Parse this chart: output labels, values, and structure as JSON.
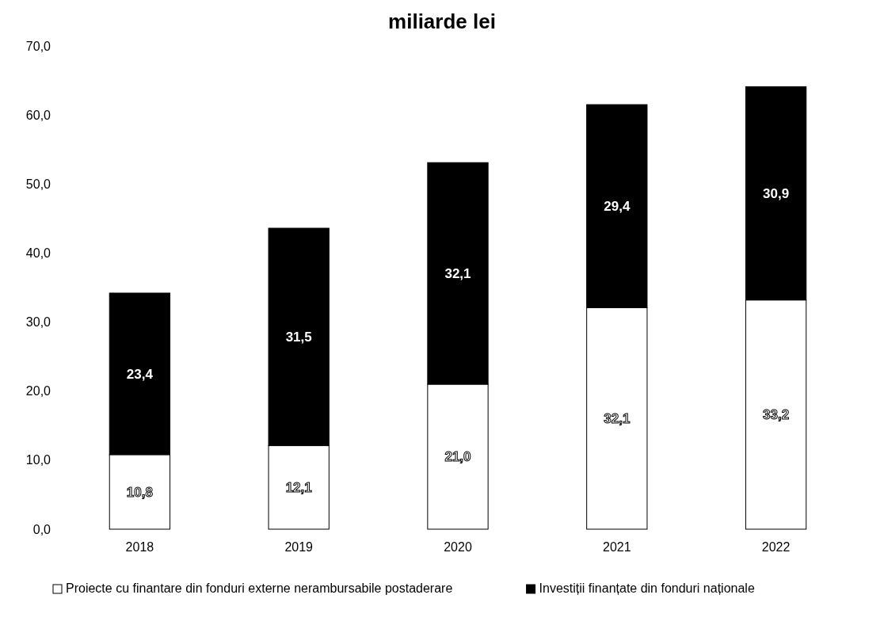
{
  "chart_data": {
    "type": "bar",
    "stacked": true,
    "title": "miliarde lei",
    "categories": [
      "2018",
      "2019",
      "2020",
      "2021",
      "2022"
    ],
    "series": [
      {
        "name": "Proiecte cu finantare din fonduri externe nerambursabile postaderare",
        "color": "#ffffff",
        "values": [
          10.8,
          12.1,
          21.0,
          32.1,
          33.2
        ],
        "value_labels": [
          "10,8",
          "12,1",
          "21,0",
          "32,1",
          "33,2"
        ]
      },
      {
        "name": "Investiții finanțate din fonduri naționale",
        "color": "#000000",
        "values": [
          23.4,
          31.5,
          32.1,
          29.4,
          30.9
        ],
        "value_labels": [
          "23,4",
          "31,5",
          "32,1",
          "29,4",
          "30,9"
        ]
      }
    ],
    "ylim": [
      0,
      70
    ],
    "yticks": [
      {
        "value": 0,
        "label": "0,0"
      },
      {
        "value": 10,
        "label": "10,0"
      },
      {
        "value": 20,
        "label": "20,0"
      },
      {
        "value": 30,
        "label": "30,0"
      },
      {
        "value": 40,
        "label": "40,0"
      },
      {
        "value": 50,
        "label": "50,0"
      },
      {
        "value": 60,
        "label": "60,0"
      },
      {
        "value": 70,
        "label": "70,0"
      }
    ],
    "grid": false,
    "legend": "bottom"
  }
}
